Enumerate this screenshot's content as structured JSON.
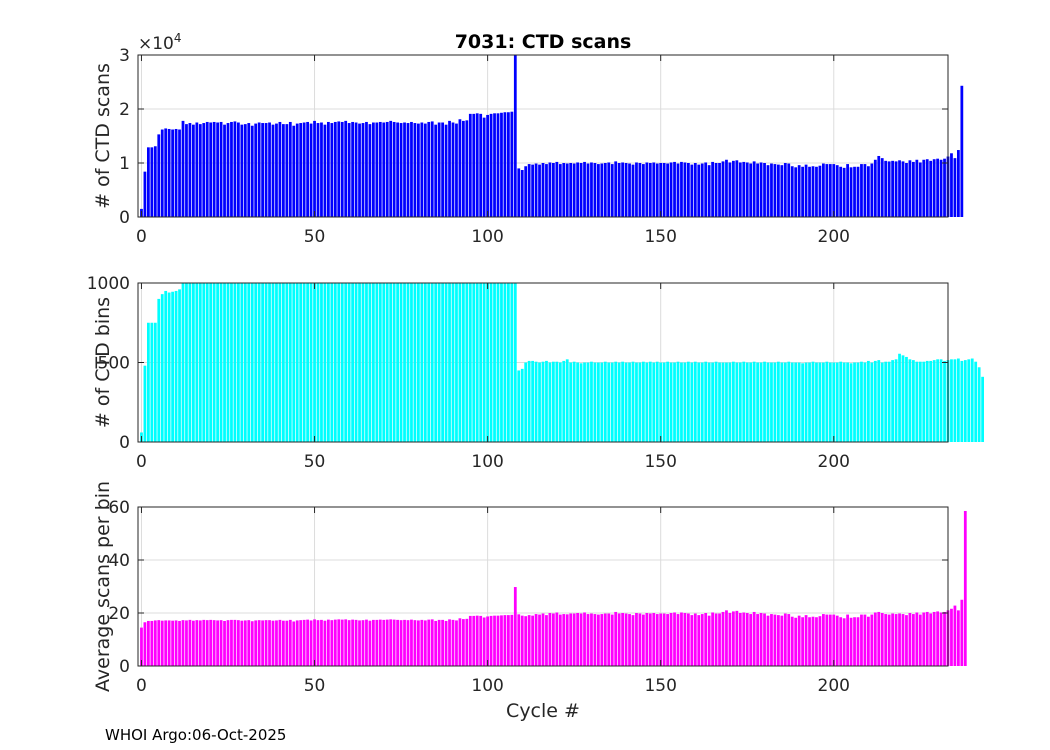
{
  "footer_text": "WHOI Argo:06-Oct-2025",
  "chart_data": [
    {
      "type": "bar",
      "title": "7031: CTD scans",
      "xlabel": "",
      "ylabel": "# of CTD scans",
      "exponent_label": "×10",
      "exponent_power": "4",
      "xlim": [
        -1,
        233
      ],
      "ylim": [
        0,
        30000
      ],
      "xticks": [
        0,
        50,
        100,
        150,
        200
      ],
      "yticks": [
        0,
        10000,
        20000,
        30000
      ],
      "ytick_labels": [
        "0",
        "1",
        "2",
        "3"
      ],
      "grid": true,
      "color": "#0000ff",
      "x_start": 0,
      "values": [
        1500,
        8400,
        12900,
        12900,
        13100,
        15300,
        16200,
        16400,
        16300,
        16200,
        16300,
        16200,
        17800,
        17200,
        17400,
        17100,
        17500,
        17200,
        17400,
        17600,
        17500,
        17600,
        17500,
        17600,
        17100,
        17400,
        17600,
        17700,
        17500,
        17100,
        17200,
        17400,
        16900,
        17300,
        17500,
        17400,
        17400,
        17500,
        17100,
        17300,
        17600,
        17200,
        17200,
        17600,
        16900,
        17300,
        17400,
        17500,
        17600,
        17300,
        17800,
        17400,
        17500,
        17100,
        17600,
        17400,
        17600,
        17700,
        17600,
        17800,
        17400,
        17600,
        17500,
        17300,
        17400,
        17600,
        17200,
        17500,
        17500,
        17600,
        17500,
        17600,
        17800,
        17600,
        17500,
        17400,
        17500,
        17400,
        17600,
        17400,
        17300,
        17500,
        17300,
        17600,
        17700,
        17100,
        17500,
        17500,
        17100,
        17800,
        17500,
        17300,
        18100,
        17800,
        17900,
        19100,
        19100,
        19200,
        19100,
        18400,
        18900,
        19100,
        19200,
        19200,
        19300,
        19400,
        19400,
        19500,
        30000,
        9000,
        8700,
        9400,
        9800,
        9700,
        9900,
        9700,
        10000,
        9800,
        10100,
        10000,
        10200,
        9800,
        10000,
        9900,
        10000,
        9900,
        10100,
        10000,
        10200,
        9900,
        10100,
        10000,
        9800,
        9900,
        10000,
        10100,
        9800,
        10300,
        10000,
        10100,
        10000,
        9900,
        9700,
        10100,
        10000,
        9800,
        10100,
        10000,
        10100,
        9900,
        10000,
        10000,
        9900,
        10100,
        10200,
        9900,
        10200,
        10100,
        10000,
        9700,
        10000,
        9700,
        9900,
        10100,
        9600,
        10200,
        10000,
        10000,
        10300,
        10600,
        10100,
        10400,
        10500,
        10100,
        10200,
        10100,
        9900,
        10300,
        9900,
        10100,
        10000,
        9600,
        9900,
        9800,
        9700,
        9600,
        10000,
        9900,
        9400,
        9200,
        9600,
        9300,
        9700,
        9300,
        9400,
        9300,
        9500,
        9900,
        9800,
        9800,
        9800,
        9600,
        9300,
        9100,
        9800,
        9200,
        9300,
        9300,
        9800,
        9800,
        9400,
        9900,
        10600,
        11300,
        10900,
        10400,
        10300,
        10400,
        10300,
        10500,
        10300,
        10000,
        10500,
        10200,
        10600,
        10100,
        10600,
        10700,
        10400,
        10700,
        10800,
        10600,
        10800,
        11200,
        11800,
        10900,
        12400,
        24300
      ]
    },
    {
      "type": "bar",
      "title": "",
      "xlabel": "",
      "ylabel": "# of CTD bins",
      "xlim": [
        -1,
        233
      ],
      "ylim": [
        0,
        1000
      ],
      "xticks": [
        0,
        50,
        100,
        150,
        200
      ],
      "yticks": [
        0,
        500,
        1000
      ],
      "ytick_labels": [
        "0",
        "500",
        "1000"
      ],
      "grid": true,
      "color": "#00ffff",
      "x_start": 0,
      "values": [
        60,
        480,
        750,
        750,
        750,
        900,
        930,
        950,
        940,
        945,
        950,
        960,
        1000,
        1000,
        1000,
        1000,
        1000,
        1000,
        1000,
        1000,
        1000,
        1000,
        1000,
        1000,
        1000,
        1000,
        1000,
        1000,
        1000,
        1000,
        1000,
        1000,
        1000,
        1000,
        1000,
        1000,
        1000,
        1000,
        1000,
        1000,
        1000,
        1000,
        1000,
        1000,
        1000,
        1000,
        1000,
        1000,
        1000,
        1000,
        1000,
        1000,
        1000,
        1000,
        1000,
        1000,
        1000,
        1000,
        1000,
        1000,
        1000,
        1000,
        1000,
        1000,
        1000,
        1000,
        1000,
        1000,
        1000,
        1000,
        1000,
        1000,
        1000,
        1000,
        1000,
        1000,
        1000,
        1000,
        1000,
        1000,
        1000,
        1000,
        1000,
        1000,
        1000,
        1000,
        1000,
        1000,
        1000,
        1000,
        1000,
        1000,
        1000,
        1000,
        1000,
        1000,
        1000,
        1000,
        1000,
        1000,
        1000,
        1000,
        1000,
        1000,
        1000,
        1000,
        1000,
        1000,
        1000,
        450,
        460,
        500,
        510,
        510,
        505,
        500,
        505,
        510,
        500,
        505,
        505,
        500,
        510,
        520,
        500,
        505,
        500,
        495,
        500,
        500,
        505,
        500,
        500,
        500,
        505,
        500,
        500,
        505,
        500,
        505,
        500,
        500,
        505,
        500,
        500,
        505,
        500,
        505,
        500,
        505,
        500,
        500,
        505,
        500,
        500,
        505,
        500,
        500,
        505,
        500,
        505,
        500,
        500,
        505,
        500,
        500,
        505,
        500,
        500,
        500,
        500,
        505,
        500,
        500,
        505,
        500,
        500,
        505,
        500,
        500,
        505,
        500,
        500,
        500,
        505,
        500,
        500,
        505,
        500,
        500,
        500,
        495,
        500,
        500,
        505,
        500,
        500,
        500,
        505,
        500,
        500,
        500,
        505,
        500,
        500,
        495,
        500,
        500,
        505,
        500,
        510,
        500,
        510,
        515,
        500,
        505,
        505,
        515,
        520,
        555,
        545,
        535,
        520,
        515,
        505,
        505,
        505,
        510,
        510,
        515,
        520,
        520,
        510,
        515,
        520,
        520,
        525,
        510,
        515,
        520,
        525,
        505,
        470,
        410
      ]
    },
    {
      "type": "bar",
      "title": "",
      "xlabel": "Cycle #",
      "ylabel": "Average scans per bin",
      "xlim": [
        -1,
        233
      ],
      "ylim": [
        0,
        60
      ],
      "xticks": [
        0,
        50,
        100,
        150,
        200
      ],
      "yticks": [
        0,
        20,
        40,
        60
      ],
      "ytick_labels": [
        "0",
        "20",
        "40",
        "60"
      ],
      "grid": true,
      "color": "#ff00ff",
      "x_start": 0,
      "values": [
        14.5,
        16.5,
        17,
        17,
        17.2,
        17.3,
        17.1,
        17.2,
        17.2,
        17.1,
        17.2,
        17,
        17.3,
        17.2,
        17.4,
        17.1,
        17.3,
        17.2,
        17.4,
        17.3,
        17.4,
        17.3,
        17.2,
        17.3,
        17,
        17.3,
        17.4,
        17.4,
        17.3,
        17.1,
        17.2,
        17.3,
        16.9,
        17.2,
        17.3,
        17.2,
        17.3,
        17.3,
        17.1,
        17.2,
        17.4,
        17.1,
        17.1,
        17.4,
        16.8,
        17.2,
        17.3,
        17.4,
        17.5,
        17.2,
        17.6,
        17.3,
        17.4,
        17.1,
        17.5,
        17.3,
        17.5,
        17.6,
        17.5,
        17.6,
        17.3,
        17.5,
        17.4,
        17.2,
        17.3,
        17.5,
        17.1,
        17.4,
        17.4,
        17.5,
        17.4,
        17.5,
        17.6,
        17.5,
        17.4,
        17.3,
        17.4,
        17.3,
        17.5,
        17.3,
        17.2,
        17.4,
        17.2,
        17.5,
        17.6,
        17,
        17.4,
        17.4,
        17,
        17.6,
        17.4,
        17.2,
        18,
        17.7,
        17.8,
        18.9,
        18.9,
        19,
        18.9,
        18.3,
        18.7,
        18.9,
        19,
        19,
        19.1,
        19.2,
        19.2,
        19.3,
        29.8,
        19.5,
        19,
        18.8,
        19.2,
        19,
        19.6,
        19.4,
        19.8,
        19.2,
        20,
        19.8,
        20.2,
        19.4,
        19.6,
        19.5,
        19.8,
        19.8,
        20,
        19.8,
        20.2,
        19.6,
        19.8,
        19.6,
        19.4,
        19.6,
        19.8,
        19.8,
        19.4,
        20.4,
        19.8,
        20,
        19.8,
        19.6,
        19.2,
        20,
        19.8,
        19.4,
        20,
        19.8,
        20,
        19.6,
        19.8,
        19.8,
        19.6,
        20,
        20.2,
        19.6,
        20.2,
        20,
        19.8,
        19.2,
        19.8,
        19.2,
        19.6,
        20,
        19,
        20.2,
        19.8,
        19.8,
        20.4,
        21,
        20,
        20.6,
        20.8,
        20,
        20.2,
        20,
        19.6,
        20.4,
        19.6,
        20,
        19.8,
        19,
        19.6,
        19.4,
        19.2,
        19,
        19.8,
        19.6,
        18.6,
        18.2,
        19,
        18.4,
        19.2,
        18.4,
        18.6,
        18.4,
        18.8,
        19.6,
        19.4,
        19.4,
        19.4,
        19,
        18.4,
        18,
        19.4,
        18.2,
        18.4,
        18.4,
        19.4,
        19.4,
        18.6,
        19.4,
        20.2,
        20.4,
        20,
        19.6,
        19.4,
        19.8,
        19.6,
        19.8,
        19.6,
        19.2,
        20,
        19.6,
        20.2,
        19.4,
        20.2,
        20.4,
        19.8,
        20.4,
        20.6,
        20.2,
        20.4,
        21,
        21.6,
        22.8,
        21,
        25,
        58.5
      ]
    }
  ]
}
